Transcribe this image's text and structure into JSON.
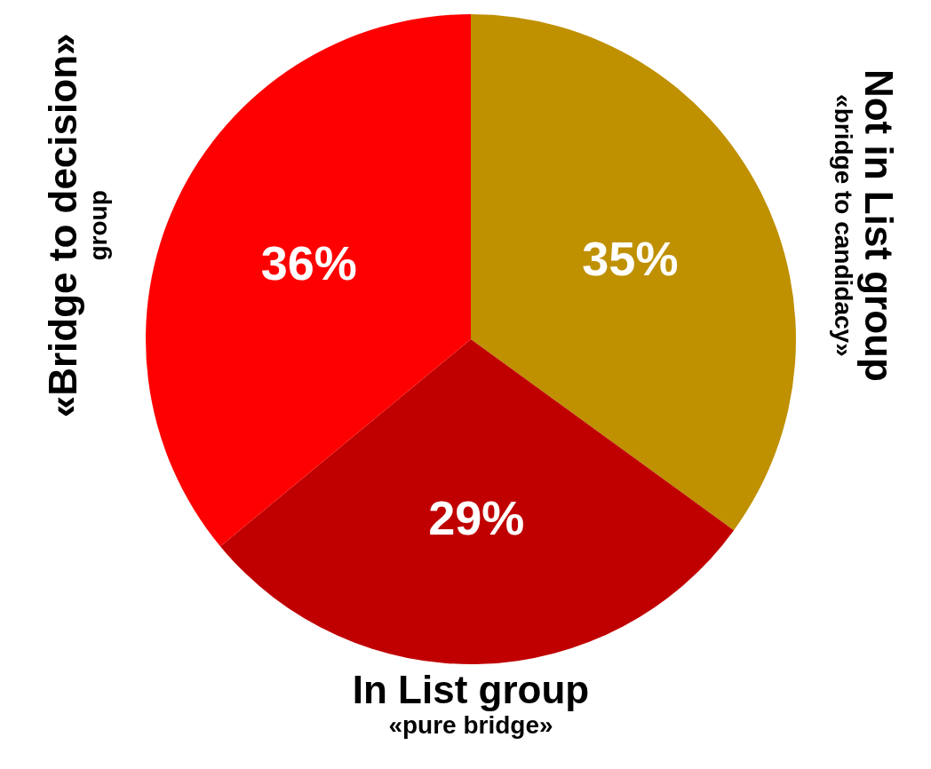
{
  "chart_data": {
    "type": "pie",
    "categories": [
      "Not in List group\n«bridge to candidacy»",
      "In List group\n«pure bridge»",
      "«Bridge to decision»\ngroup"
    ],
    "values": [
      35,
      29,
      36
    ],
    "colors": [
      "#bf9000",
      "#c00000",
      "#ff0000"
    ],
    "value_labels": [
      "35%",
      "29%",
      "36%"
    ],
    "legend": false
  }
}
